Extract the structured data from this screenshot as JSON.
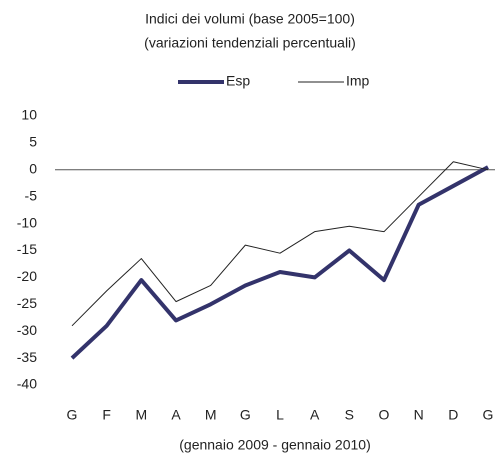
{
  "chart_data": {
    "type": "line",
    "title": "Indici dei volumi (base 2005=100)",
    "subtitle": "(variazioni tendenziali percentuali)",
    "x_label": "(gennaio 2009 - gennaio 2010)",
    "categories": [
      "G",
      "F",
      "M",
      "A",
      "M",
      "G",
      "L",
      "A",
      "S",
      "O",
      "N",
      "D",
      "G"
    ],
    "series": [
      {
        "name": "Esp",
        "color": "#33336b",
        "width": 4,
        "values": [
          -35,
          -29,
          -20.5,
          -28,
          -25,
          -21.5,
          -19,
          -20,
          -15,
          -20.5,
          -6.5,
          -3,
          0.5
        ]
      },
      {
        "name": "Imp",
        "color": "#222222",
        "width": 1,
        "values": [
          -29,
          -22.5,
          -16.5,
          -24.5,
          -21.5,
          -14,
          -15.5,
          -11.5,
          -10.5,
          -11.5,
          -5,
          1.5,
          0
        ]
      }
    ],
    "ylim": [
      -40,
      10
    ],
    "yticks": [
      10,
      5,
      0,
      -5,
      -10,
      -15,
      -20,
      -25,
      -30,
      -35,
      -40
    ],
    "grid": false,
    "legend": "top"
  }
}
